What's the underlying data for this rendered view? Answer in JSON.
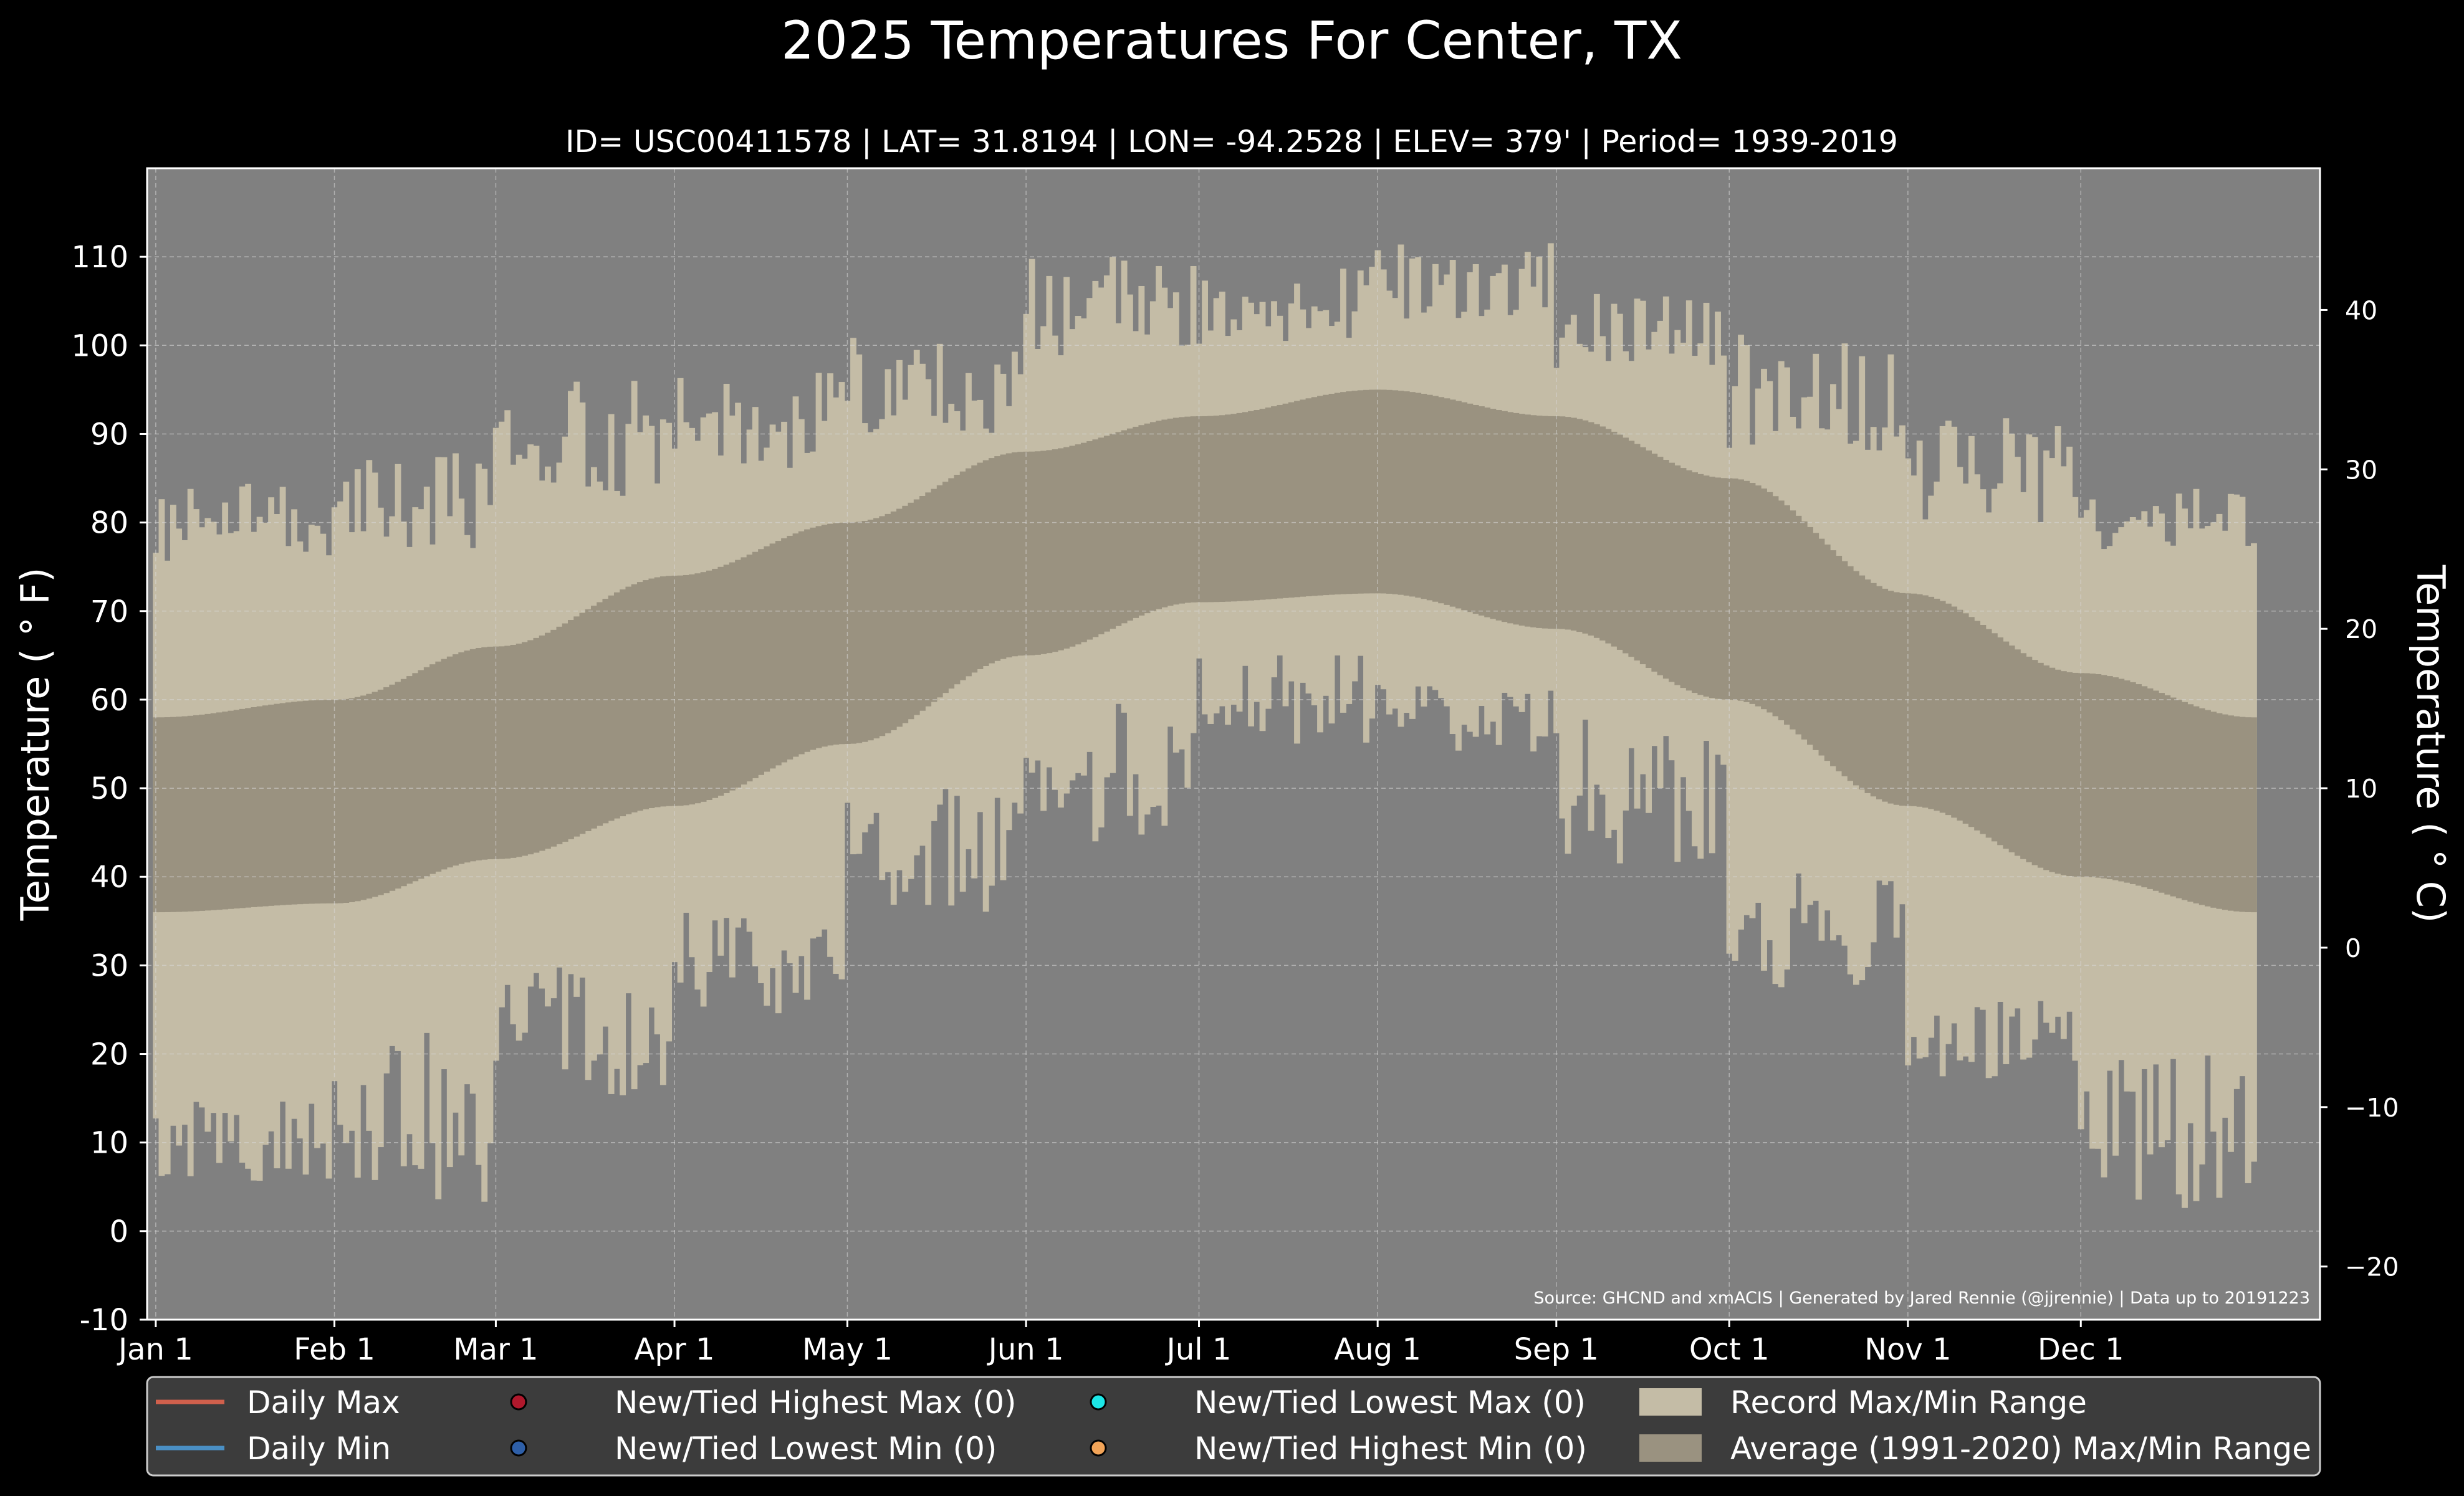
{
  "chart_data": {
    "type": "area",
    "title": "2025 Temperatures For Center, TX",
    "subtitle": "ID= USC00411578 | LAT= 31.8194 | LON= -94.2528 | ELEV= 379' | Period= 1939-2019",
    "ylabel": "Temperature ( ° F)",
    "ylabel_right": "Temperature ( ° C)",
    "ylim": [
      -10,
      120
    ],
    "yticks": [
      -10,
      0,
      10,
      20,
      30,
      40,
      50,
      60,
      70,
      80,
      90,
      100,
      110
    ],
    "yticks_right": [
      -20,
      -10,
      0,
      10,
      20,
      30,
      40
    ],
    "x_tick_labels": [
      "Jan 1",
      "Feb 1",
      "Mar 1",
      "Apr 1",
      "May 1",
      "Jun 1",
      "Jul 1",
      "Aug 1",
      "Sep 1",
      "Oct 1",
      "Nov 1",
      "Dec 1"
    ],
    "x_tick_days": [
      1,
      32,
      60,
      91,
      121,
      152,
      182,
      213,
      244,
      274,
      305,
      335
    ],
    "grid": true,
    "source_text": "Source: GHCND and xmACIS | Generated by Jared Rennie (@jjrennie) | Data up to 20191223",
    "legend_position": "bottom",
    "legend": [
      {
        "label": "Daily Max",
        "kind": "line",
        "color": "#d0604c"
      },
      {
        "label": "New/Tied Highest Max (0)",
        "kind": "dot",
        "color": "#b0182c"
      },
      {
        "label": "New/Tied Lowest Max (0)",
        "kind": "dot",
        "color": "#1ce6e6"
      },
      {
        "label": "Record Max/Min Range",
        "kind": "box",
        "color": "#c4bca6"
      },
      {
        "label": "Daily Min",
        "kind": "line",
        "color": "#4a8fc4"
      },
      {
        "label": "New/Tied Lowest Min (0)",
        "kind": "dot",
        "color": "#2e5fa8"
      },
      {
        "label": "New/Tied Highest Min (0)",
        "kind": "dot",
        "color": "#f2a458"
      },
      {
        "label": "Average (1991-2020) Max/Min Range",
        "kind": "box",
        "color": "#9a9280"
      }
    ],
    "colors": {
      "background": "#000000",
      "plot_background": "#808080",
      "record_range": "#c4bca6",
      "average_range": "#9a9280",
      "legend_background": "#3c3c3c"
    },
    "record_max_monthly": [
      {
        "month": "Jan",
        "min": 75,
        "max": 85
      },
      {
        "month": "Feb",
        "min": 77,
        "max": 88
      },
      {
        "month": "Mar",
        "min": 83,
        "max": 96
      },
      {
        "month": "Apr",
        "min": 86,
        "max": 97
      },
      {
        "month": "May",
        "min": 90,
        "max": 101
      },
      {
        "month": "Jun",
        "min": 98,
        "max": 110
      },
      {
        "month": "Jul",
        "min": 100,
        "max": 109
      },
      {
        "month": "Aug",
        "min": 103,
        "max": 112
      },
      {
        "month": "Sep",
        "min": 97,
        "max": 106
      },
      {
        "month": "Oct",
        "min": 88,
        "max": 102
      },
      {
        "month": "Nov",
        "min": 80,
        "max": 92
      },
      {
        "month": "Dec",
        "min": 77,
        "max": 85
      }
    ],
    "record_min_monthly": [
      {
        "month": "Jan",
        "min": 5,
        "max": 15
      },
      {
        "month": "Feb",
        "min": 0,
        "max": 23
      },
      {
        "month": "Mar",
        "min": 15,
        "max": 30
      },
      {
        "month": "Apr",
        "min": 24,
        "max": 36
      },
      {
        "month": "May",
        "min": 36,
        "max": 50
      },
      {
        "month": "Jun",
        "min": 44,
        "max": 60
      },
      {
        "month": "Jul",
        "min": 55,
        "max": 65
      },
      {
        "month": "Aug",
        "min": 54,
        "max": 62
      },
      {
        "month": "Sep",
        "min": 41,
        "max": 58
      },
      {
        "month": "Oct",
        "min": 27,
        "max": 42
      },
      {
        "month": "Nov",
        "min": 17,
        "max": 26
      },
      {
        "month": "Dec",
        "min": 2,
        "max": 20
      }
    ],
    "average_max_anchors": [
      {
        "day": 1,
        "value": 58
      },
      {
        "day": 32,
        "value": 60
      },
      {
        "day": 60,
        "value": 66
      },
      {
        "day": 91,
        "value": 74
      },
      {
        "day": 121,
        "value": 80
      },
      {
        "day": 152,
        "value": 88
      },
      {
        "day": 182,
        "value": 92
      },
      {
        "day": 213,
        "value": 95
      },
      {
        "day": 244,
        "value": 92
      },
      {
        "day": 274,
        "value": 85
      },
      {
        "day": 305,
        "value": 72
      },
      {
        "day": 335,
        "value": 63
      },
      {
        "day": 365,
        "value": 58
      }
    ],
    "average_min_anchors": [
      {
        "day": 1,
        "value": 36
      },
      {
        "day": 32,
        "value": 37
      },
      {
        "day": 60,
        "value": 42
      },
      {
        "day": 91,
        "value": 48
      },
      {
        "day": 121,
        "value": 55
      },
      {
        "day": 152,
        "value": 65
      },
      {
        "day": 182,
        "value": 71
      },
      {
        "day": 213,
        "value": 72
      },
      {
        "day": 244,
        "value": 68
      },
      {
        "day": 274,
        "value": 60
      },
      {
        "day": 305,
        "value": 48
      },
      {
        "day": 335,
        "value": 40
      },
      {
        "day": 365,
        "value": 36
      }
    ]
  }
}
